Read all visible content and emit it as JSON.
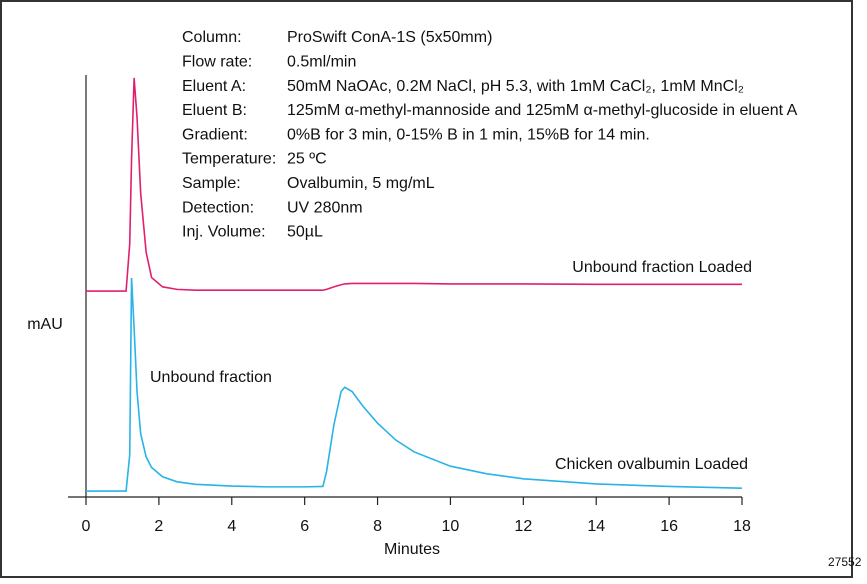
{
  "chart_data": {
    "type": "line",
    "notes": [
      {
        "label": "Column:",
        "value": "ProSwift ConA-1S (5x50mm)"
      },
      {
        "label": "Flow rate:",
        "value": "0.5ml/min"
      },
      {
        "label": "Eluent A:",
        "value": "50mM NaOAc, 0.2M NaCl, pH 5.3, with 1mM CaCl₂, 1mM MnCl₂"
      },
      {
        "label": "Eluent B:",
        "value": "125mM α-methyl-mannoside and 125mM α-methyl-glucoside in eluent A"
      },
      {
        "label": "Gradient:",
        "value": "0%B for 3 min, 0-15% B in 1 min, 15%B for 14 min."
      },
      {
        "label": "Temperature:",
        "value": "25 ºC"
      },
      {
        "label": "Sample:",
        "value": "Ovalbumin, 5 mg/mL"
      },
      {
        "label": "Detection:",
        "value": "UV 280nm"
      },
      {
        "label": "Inj. Volume:",
        "value": "50µL"
      }
    ],
    "annotation": "Unbound fraction",
    "x_label": "Minutes",
    "y_label": "mAU",
    "figure_id": "27552",
    "x": [
      0,
      1.1,
      1.2,
      1.25,
      1.32,
      1.4,
      1.5,
      1.65,
      1.8,
      2.1,
      2.5,
      3,
      4,
      5,
      6,
      6.5,
      6.6,
      6.8,
      7.0,
      7.1,
      7.3,
      7.6,
      8,
      8.5,
      9,
      10,
      11,
      12,
      14,
      16,
      18
    ],
    "series": [
      {
        "name": "Unbound fraction Loaded",
        "color": "#e0206e",
        "values": [
          48.8,
          48.8,
          60,
          80,
          99.3,
          90,
          72,
          58,
          52,
          49.8,
          49.2,
          49,
          49,
          49,
          49,
          49,
          49.2,
          49.8,
          50.3,
          50.5,
          50.6,
          50.6,
          50.6,
          50.6,
          50.6,
          50.5,
          50.5,
          50.5,
          50.4,
          50.4,
          50.4
        ]
      },
      {
        "name": "Chicken ovalbumin Loaded",
        "color": "#29b3e8",
        "values": [
          1.4,
          1.4,
          10,
          51.9,
          40,
          25,
          15,
          9.5,
          7,
          4.8,
          3.6,
          3,
          2.6,
          2.4,
          2.4,
          2.5,
          6,
          17,
          25,
          26,
          25,
          21.5,
          17.5,
          13.5,
          10.7,
          7.3,
          5.5,
          4.3,
          3.1,
          2.5,
          2.1
        ]
      }
    ],
    "xlim": [
      0,
      18
    ],
    "xticks": [
      0,
      2,
      4,
      6,
      8,
      10,
      12,
      14,
      16,
      18
    ],
    "ylim": [
      0,
      100
    ]
  }
}
